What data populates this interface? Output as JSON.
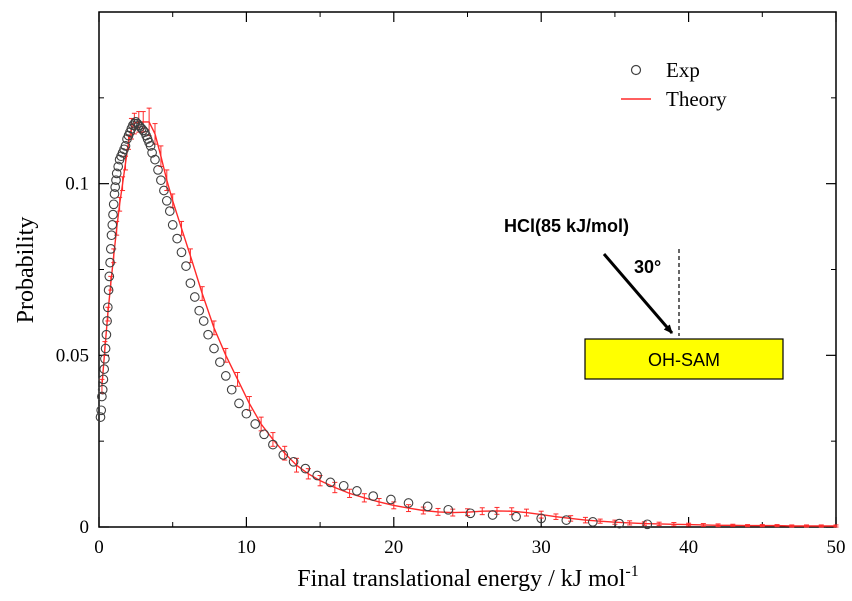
{
  "chart_data": {
    "type": "scatter",
    "xlabel": "Final translational energy / kJ mol",
    "xlabel_superscript": "-1",
    "ylabel": "Probability",
    "xlim": [
      0,
      50
    ],
    "ylim": [
      0,
      0.15
    ],
    "xticks": [
      0,
      10,
      20,
      30,
      40,
      50
    ],
    "xtick_labels": [
      "0",
      "10",
      "20",
      "30",
      "40",
      "50"
    ],
    "yticks": [
      0,
      0.05,
      0.1
    ],
    "ytick_labels": [
      "0",
      "0.05",
      "0.1"
    ],
    "grid": false,
    "legend_position": "top-right",
    "series": [
      {
        "name": "Exp",
        "kind": "markers",
        "color": "#404040",
        "x": [
          0.1,
          0.15,
          0.2,
          0.25,
          0.3,
          0.35,
          0.4,
          0.45,
          0.5,
          0.55,
          0.6,
          0.65,
          0.7,
          0.75,
          0.8,
          0.85,
          0.9,
          0.95,
          1.0,
          1.05,
          1.1,
          1.15,
          1.2,
          1.3,
          1.4,
          1.5,
          1.6,
          1.7,
          1.8,
          1.9,
          2.0,
          2.1,
          2.2,
          2.3,
          2.4,
          2.5,
          2.6,
          2.7,
          2.8,
          2.9,
          3.0,
          3.1,
          3.2,
          3.3,
          3.4,
          3.5,
          3.6,
          3.8,
          4.0,
          4.2,
          4.4,
          4.6,
          4.8,
          5.0,
          5.3,
          5.6,
          5.9,
          6.2,
          6.5,
          6.8,
          7.1,
          7.4,
          7.8,
          8.2,
          8.6,
          9.0,
          9.5,
          10.0,
          10.6,
          11.2,
          11.8,
          12.5,
          13.2,
          14.0,
          14.8,
          15.7,
          16.6,
          17.5,
          18.6,
          19.8,
          21.0,
          22.3,
          23.7,
          25.2,
          26.7,
          28.3,
          30.0,
          31.7,
          33.5,
          35.3,
          37.2
        ],
        "y": [
          0.032,
          0.034,
          0.038,
          0.04,
          0.043,
          0.046,
          0.049,
          0.052,
          0.056,
          0.06,
          0.064,
          0.069,
          0.073,
          0.077,
          0.081,
          0.085,
          0.088,
          0.091,
          0.094,
          0.097,
          0.099,
          0.101,
          0.103,
          0.105,
          0.107,
          0.108,
          0.109,
          0.11,
          0.111,
          0.113,
          0.114,
          0.115,
          0.116,
          0.117,
          0.1175,
          0.118,
          0.1175,
          0.117,
          0.1165,
          0.116,
          0.1155,
          0.115,
          0.114,
          0.113,
          0.112,
          0.111,
          0.109,
          0.107,
          0.104,
          0.101,
          0.098,
          0.095,
          0.092,
          0.088,
          0.084,
          0.08,
          0.076,
          0.071,
          0.067,
          0.063,
          0.06,
          0.056,
          0.052,
          0.048,
          0.044,
          0.04,
          0.036,
          0.033,
          0.03,
          0.027,
          0.024,
          0.021,
          0.019,
          0.017,
          0.015,
          0.013,
          0.012,
          0.0105,
          0.009,
          0.008,
          0.007,
          0.006,
          0.005,
          0.004,
          0.0035,
          0.003,
          0.0025,
          0.002,
          0.0015,
          0.001,
          0.0008
        ]
      },
      {
        "name": "Theory",
        "kind": "line-errorbars",
        "color": "#ff2a2a",
        "x": [
          0.2,
          0.4,
          0.6,
          0.8,
          1.0,
          1.2,
          1.4,
          1.6,
          1.8,
          2.0,
          2.2,
          2.4,
          2.7,
          3.0,
          3.4,
          3.8,
          4.2,
          4.6,
          5.0,
          5.6,
          6.2,
          7.0,
          7.8,
          8.6,
          9.4,
          10.2,
          11.0,
          11.8,
          12.6,
          13.4,
          14.2,
          15.0,
          16.0,
          17.0,
          18.0,
          19.0,
          20.0,
          21.0,
          22.0,
          23.0,
          24.0,
          25.0,
          26.0,
          27.0,
          28.0,
          29.0,
          30.0,
          31.0,
          32.0,
          33.0,
          34.0,
          35.0,
          36.0,
          37.0,
          38.0,
          39.0,
          40.0,
          41.0,
          42.0,
          43.0,
          44.0,
          45.0,
          46.0,
          47.0,
          48.0,
          49.0,
          50.0
        ],
        "y": [
          0.041,
          0.052,
          0.062,
          0.071,
          0.079,
          0.087,
          0.094,
          0.1,
          0.106,
          0.112,
          0.116,
          0.1175,
          0.118,
          0.118,
          0.118,
          0.1145,
          0.108,
          0.101,
          0.095,
          0.087,
          0.079,
          0.068,
          0.058,
          0.05,
          0.043,
          0.036,
          0.03,
          0.0255,
          0.0215,
          0.018,
          0.0155,
          0.0135,
          0.0115,
          0.0098,
          0.0085,
          0.0073,
          0.0063,
          0.0055,
          0.0048,
          0.0044,
          0.0042,
          0.0043,
          0.0046,
          0.0047,
          0.0046,
          0.0042,
          0.0036,
          0.003,
          0.0025,
          0.002,
          0.0017,
          0.0014,
          0.0012,
          0.001,
          0.0009,
          0.0008,
          0.0007,
          0.0006,
          0.0005,
          0.0005,
          0.0004,
          0.0004,
          0.0004,
          0.0003,
          0.0003,
          0.0003,
          0.0003
        ],
        "err": [
          0.002,
          0.002,
          0.002,
          0.002,
          0.002,
          0.002,
          0.002,
          0.002,
          0.002,
          0.002,
          0.003,
          0.003,
          0.003,
          0.003,
          0.004,
          0.003,
          0.003,
          0.003,
          0.002,
          0.002,
          0.002,
          0.002,
          0.002,
          0.002,
          0.002,
          0.002,
          0.002,
          0.002,
          0.002,
          0.002,
          0.0015,
          0.0015,
          0.0015,
          0.0012,
          0.0012,
          0.001,
          0.001,
          0.001,
          0.001,
          0.001,
          0.001,
          0.001,
          0.001,
          0.001,
          0.001,
          0.001,
          0.001,
          0.0008,
          0.0008,
          0.0008,
          0.0006,
          0.0006,
          0.0006,
          0.0005,
          0.0005,
          0.0005,
          0.0004,
          0.0004,
          0.0004,
          0.0003,
          0.0003,
          0.0003,
          0.0003,
          0.0003,
          0.0003,
          0.0003,
          0.0003
        ]
      }
    ],
    "annotations": {
      "incidence_label": "HCl(85 kJ/mol)",
      "angle_label": "30°",
      "surface_label": "OH-SAM",
      "surface_color": "#ffff00"
    }
  }
}
